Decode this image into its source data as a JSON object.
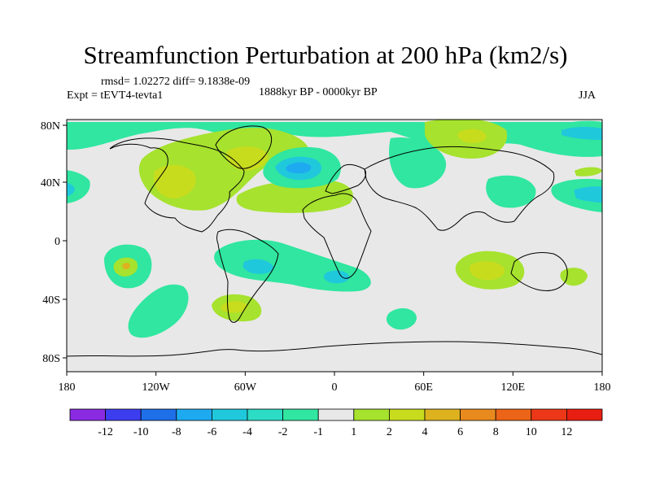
{
  "title": "Streamfunction Perturbation at 200 hPa (km2/s)",
  "stats": "rmsd= 1.02272  diff= 9.1838e-09",
  "experiment": "Expt = tEVT4-tevta1",
  "period": "1888kyr BP - 0000kyr BP",
  "season": "JJA",
  "lat_labels": [
    "80N",
    "40N",
    "0",
    "40S",
    "80S"
  ],
  "lon_labels": [
    "180",
    "120W",
    "60W",
    "0",
    "60E",
    "120E",
    "180"
  ],
  "colorbar": {
    "labels": [
      "-12",
      "-10",
      "-8",
      "-6",
      "-4",
      "-2",
      "-1",
      "1",
      "2",
      "4",
      "6",
      "8",
      "10",
      "12"
    ],
    "colors": [
      "#8a2be2",
      "#3d3df0",
      "#1e6fe8",
      "#1eaaf0",
      "#20c8dc",
      "#2cdcc4",
      "#30e6a0",
      "#e8e8e8",
      "#a6e22e",
      "#c8dc1e",
      "#ddb21e",
      "#e88a1e",
      "#ec6418",
      "#ec3818",
      "#e81e12"
    ]
  }
}
